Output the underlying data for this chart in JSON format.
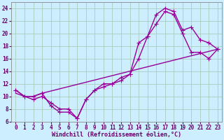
{
  "xlabel": "Windchill (Refroidissement éolien,°C)",
  "line_color": "#990099",
  "bg_color": "#cceeff",
  "grid_color": "#aaccbb",
  "xlim": [
    -0.5,
    23.5
  ],
  "ylim": [
    6,
    25
  ],
  "xticks": [
    0,
    1,
    2,
    3,
    4,
    5,
    6,
    7,
    8,
    9,
    10,
    11,
    12,
    13,
    14,
    15,
    16,
    17,
    18,
    19,
    20,
    21,
    22,
    23
  ],
  "yticks": [
    6,
    8,
    10,
    12,
    14,
    16,
    18,
    20,
    22,
    24
  ],
  "series1_x": [
    0,
    1,
    2,
    3,
    4,
    5,
    6,
    7,
    8,
    9,
    10,
    11,
    12,
    13,
    14,
    15,
    16,
    17,
    18,
    19,
    20,
    21,
    22,
    23
  ],
  "series1_y": [
    11,
    10,
    10,
    10.5,
    8.5,
    7.5,
    7.5,
    6.5,
    9.5,
    11,
    12,
    12,
    13,
    13.5,
    18.5,
    19.5,
    23,
    24,
    23.5,
    20.5,
    21,
    19,
    18.5,
    17.5
  ],
  "series2_x": [
    0,
    1,
    2,
    3,
    4,
    5,
    6,
    7,
    8,
    9,
    10,
    11,
    12,
    13,
    14,
    15,
    16,
    17,
    18,
    19,
    20,
    21,
    22,
    23
  ],
  "series2_y": [
    11,
    10,
    9.5,
    10,
    9,
    8,
    8,
    6.5,
    9.5,
    11,
    11.5,
    12,
    12.5,
    13.5,
    16,
    19.5,
    21.5,
    23.5,
    23,
    20,
    17,
    17,
    16,
    17.5
  ],
  "series3_x": [
    0,
    1,
    2,
    3,
    23
  ],
  "series3_y": [
    10.5,
    10,
    10,
    10.5,
    17.5
  ],
  "marker_size": 2.5,
  "linewidth": 1.0,
  "tick_fontsize": 5.5,
  "xlabel_fontsize": 6.0
}
